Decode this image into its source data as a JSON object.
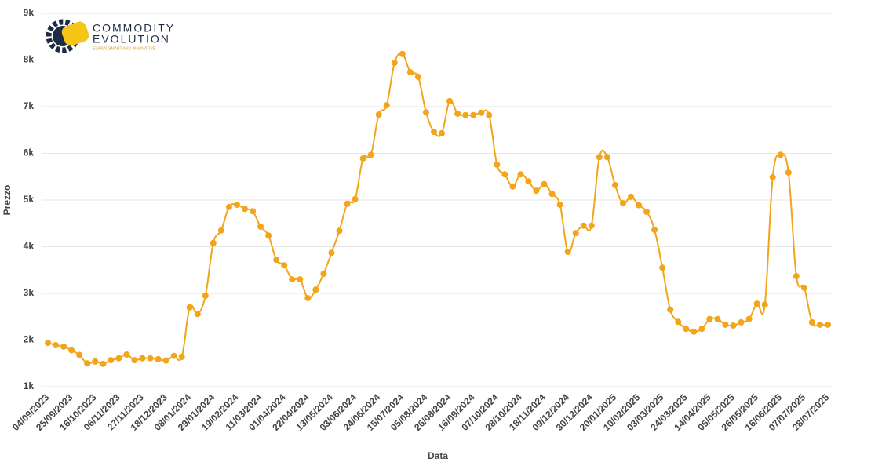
{
  "logo": {
    "line1": "COMMODITY",
    "line2": "EVOLUTION",
    "tagline": "SIMPLY, SMART AND INNOVATIVE"
  },
  "chart_data": {
    "type": "line",
    "x_label": "Data",
    "y_label": "Prezzo",
    "color": "#f2a51a",
    "grid": true,
    "ylim": [
      1000,
      9000
    ],
    "yticks": [
      {
        "value": 1000,
        "label": "1k"
      },
      {
        "value": 2000,
        "label": "2k"
      },
      {
        "value": 3000,
        "label": "3k"
      },
      {
        "value": 4000,
        "label": "4k"
      },
      {
        "value": 5000,
        "label": "5k"
      },
      {
        "value": 6000,
        "label": "6k"
      },
      {
        "value": 7000,
        "label": "7k"
      },
      {
        "value": 8000,
        "label": "8k"
      },
      {
        "value": 9000,
        "label": "9k"
      }
    ],
    "categories": [
      "04/09/2023",
      null,
      null,
      "25/09/2023",
      null,
      null,
      "16/10/2023",
      null,
      null,
      "06/11/2023",
      null,
      null,
      "27/11/2023",
      null,
      null,
      "18/12/2023",
      null,
      null,
      "08/01/2024",
      null,
      null,
      "29/01/2024",
      null,
      null,
      "19/02/2024",
      null,
      null,
      "11/03/2024",
      null,
      null,
      "01/04/2024",
      null,
      null,
      "22/04/2024",
      null,
      null,
      "13/05/2024",
      null,
      null,
      "03/06/2024",
      null,
      null,
      "24/06/2024",
      null,
      null,
      "15/07/2024",
      null,
      null,
      "05/08/2024",
      null,
      null,
      "26/08/2024",
      null,
      null,
      "16/09/2024",
      null,
      null,
      "07/10/2024",
      null,
      null,
      "28/10/2024",
      null,
      null,
      "18/11/2024",
      null,
      null,
      "09/12/2024",
      null,
      null,
      "30/12/2024",
      null,
      null,
      "20/01/2025",
      null,
      null,
      "10/02/2025",
      null,
      null,
      "03/03/2025",
      null,
      null,
      "24/03/2025",
      null,
      null,
      "14/04/2025",
      null,
      null,
      "05/05/2025",
      null,
      null,
      "26/05/2025",
      null,
      null,
      "16/06/2025",
      null,
      null,
      "07/07/2025",
      null,
      null,
      "28/07/2025"
    ],
    "values": [
      1940,
      1890,
      1860,
      1780,
      1680,
      1500,
      1540,
      1490,
      1570,
      1610,
      1690,
      1570,
      1610,
      1610,
      1590,
      1560,
      1660,
      1640,
      2700,
      2560,
      2950,
      4080,
      4350,
      4850,
      4900,
      4810,
      4760,
      4430,
      4240,
      3720,
      3600,
      3300,
      3300,
      2900,
      3080,
      3420,
      3870,
      4340,
      4920,
      5020,
      5890,
      5970,
      6830,
      7030,
      7940,
      8130,
      7740,
      7640,
      6880,
      6460,
      6430,
      7120,
      6850,
      6820,
      6820,
      6870,
      6820,
      5760,
      5550,
      5290,
      5550,
      5400,
      5200,
      5340,
      5130,
      4900,
      3890,
      4290,
      4450,
      4450,
      5920,
      5920,
      5320,
      4930,
      5070,
      4890,
      4750,
      4360,
      3550,
      2650,
      2390,
      2240,
      2180,
      2240,
      2450,
      2450,
      2330,
      2310,
      2380,
      2450,
      2780,
      2760,
      5490,
      5970,
      5590,
      3370,
      3120,
      2380,
      2330,
      2330
    ]
  }
}
